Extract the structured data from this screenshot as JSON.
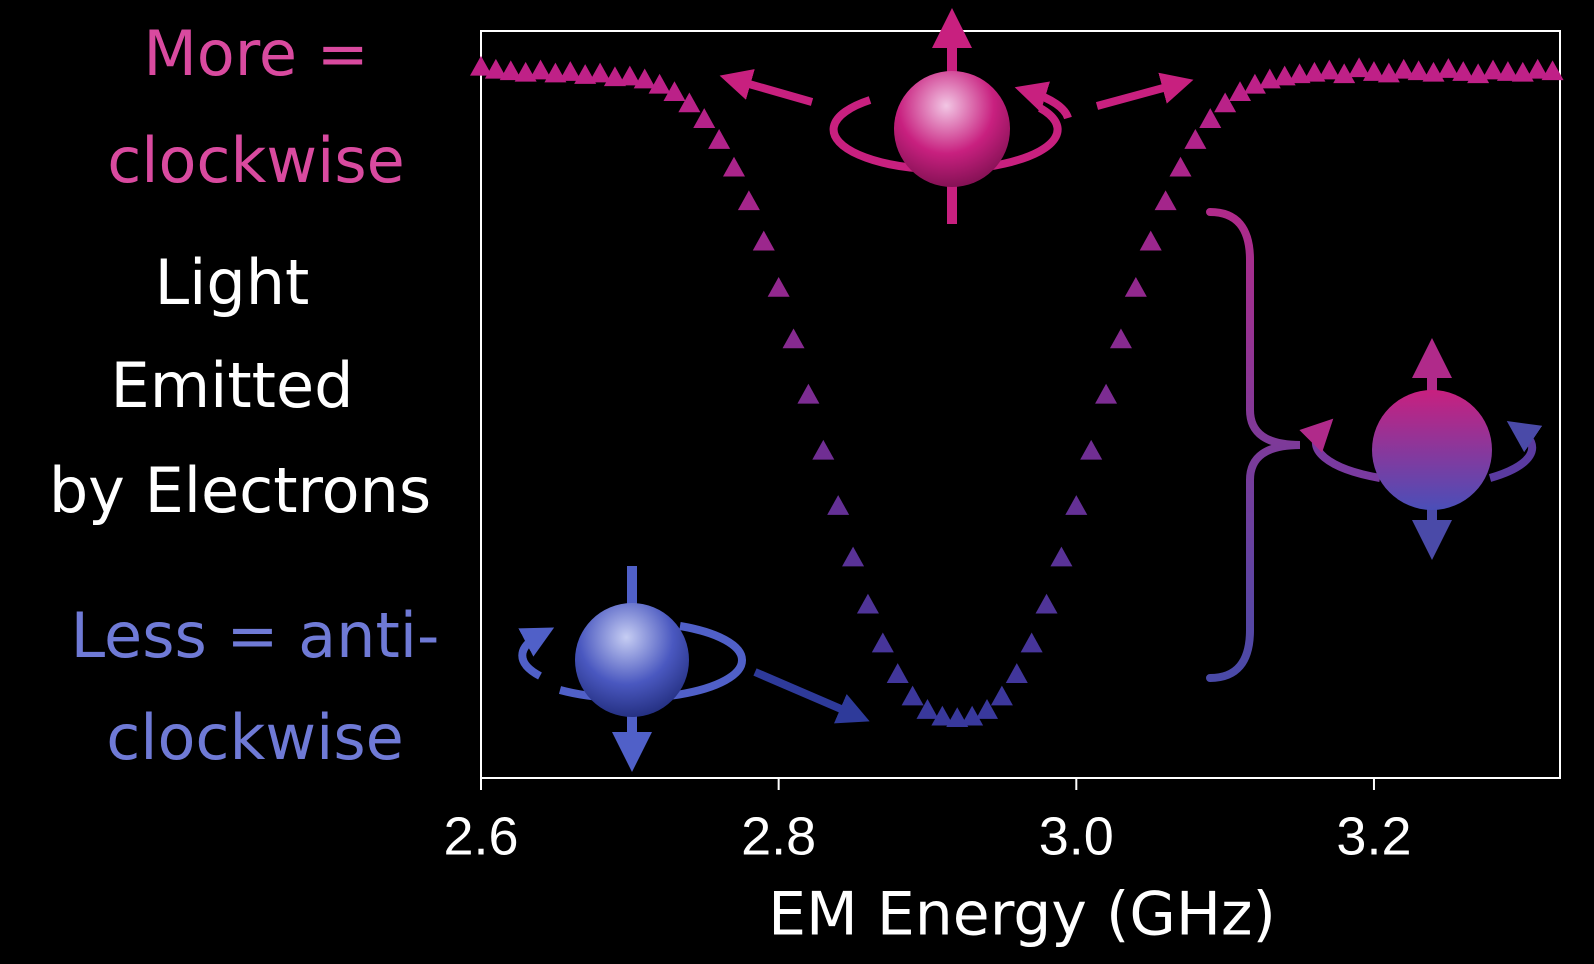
{
  "chart_data": {
    "type": "scatter",
    "xlabel": "EM Energy (GHz)",
    "annotations": [
      "More =",
      "clockwise",
      "Light",
      "Emitted",
      "by Electrons",
      "Less = anti-",
      "clockwise"
    ],
    "annotation_colors": [
      "#d94a9f",
      "#d94a9f",
      "#ffffff",
      "#ffffff",
      "#ffffff",
      "#6f7ad6",
      "#6f7ad6"
    ],
    "xlim": [
      2.6,
      3.325
    ],
    "ylim": [
      0,
      1
    ],
    "xticks": [
      {
        "value": 2.6,
        "label": "2.6"
      },
      {
        "value": 2.8,
        "label": "2.8"
      },
      {
        "value": 3.0,
        "label": "3.0"
      },
      {
        "value": 3.2,
        "label": "3.2"
      }
    ],
    "marker": "triangle",
    "colors": [
      "#2b3a9e",
      "#c81f86"
    ],
    "x": [
      2.6,
      2.61,
      2.62,
      2.63,
      2.64,
      2.65,
      2.66,
      2.67,
      2.68,
      2.69,
      2.7,
      2.71,
      2.72,
      2.73,
      2.74,
      2.75,
      2.76,
      2.77,
      2.78,
      2.79,
      2.8,
      2.81,
      2.82,
      2.83,
      2.84,
      2.85,
      2.86,
      2.87,
      2.88,
      2.89,
      2.9,
      2.91,
      2.92,
      2.93,
      2.94,
      2.95,
      2.96,
      2.97,
      2.98,
      2.99,
      3.0,
      3.01,
      3.02,
      3.03,
      3.04,
      3.05,
      3.06,
      3.07,
      3.08,
      3.09,
      3.1,
      3.11,
      3.12,
      3.13,
      3.14,
      3.15,
      3.16,
      3.17,
      3.18,
      3.19,
      3.2,
      3.21,
      3.22,
      3.23,
      3.24,
      3.25,
      3.26,
      3.27,
      3.28,
      3.29,
      3.3,
      3.31,
      3.32
    ],
    "values": [
      0.952,
      0.948,
      0.946,
      0.944,
      0.947,
      0.943,
      0.945,
      0.941,
      0.943,
      0.938,
      0.939,
      0.935,
      0.928,
      0.918,
      0.903,
      0.882,
      0.854,
      0.817,
      0.772,
      0.718,
      0.656,
      0.587,
      0.513,
      0.438,
      0.364,
      0.295,
      0.232,
      0.18,
      0.139,
      0.109,
      0.091,
      0.082,
      0.08,
      0.082,
      0.091,
      0.109,
      0.139,
      0.18,
      0.232,
      0.295,
      0.364,
      0.438,
      0.513,
      0.587,
      0.656,
      0.718,
      0.772,
      0.817,
      0.854,
      0.882,
      0.903,
      0.918,
      0.928,
      0.935,
      0.939,
      0.942,
      0.944,
      0.947,
      0.942,
      0.95,
      0.945,
      0.943,
      0.948,
      0.946,
      0.944,
      0.949,
      0.945,
      0.942,
      0.947,
      0.945,
      0.944,
      0.948,
      0.946
    ]
  }
}
